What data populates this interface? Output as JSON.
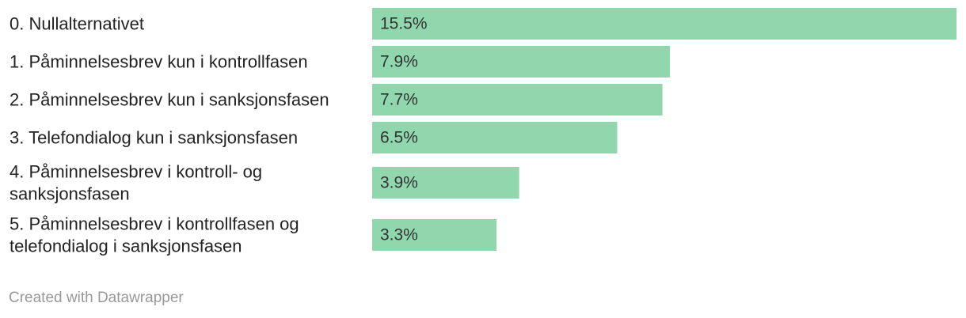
{
  "chart_data": {
    "type": "bar",
    "orientation": "horizontal",
    "categories": [
      [
        "0. Nullalternativet"
      ],
      [
        "1. Påminnelsesbrev kun i kontrollfasen"
      ],
      [
        "2. Påminnelsesbrev kun i sanksjonsfasen"
      ],
      [
        "3. Telefondialog kun i sanksjonsfasen"
      ],
      [
        "4. Påminnelsesbrev i kontroll- og",
        "sanksjonsfasen"
      ],
      [
        "5. Påminnelsesbrev i kontrollfasen og",
        "telefondialog i sanksjonsfasen"
      ]
    ],
    "values": [
      15.5,
      7.9,
      7.7,
      6.5,
      3.9,
      3.3
    ],
    "value_labels": [
      "15.5%",
      "7.9%",
      "7.7%",
      "6.5%",
      "3.9%",
      "3.3%"
    ],
    "unit": "%",
    "xlim": [
      0,
      15.5
    ],
    "bar_color": "#91d7ad",
    "grid": false,
    "legend": "none"
  },
  "footer": {
    "credit": "Created with Datawrapper"
  }
}
